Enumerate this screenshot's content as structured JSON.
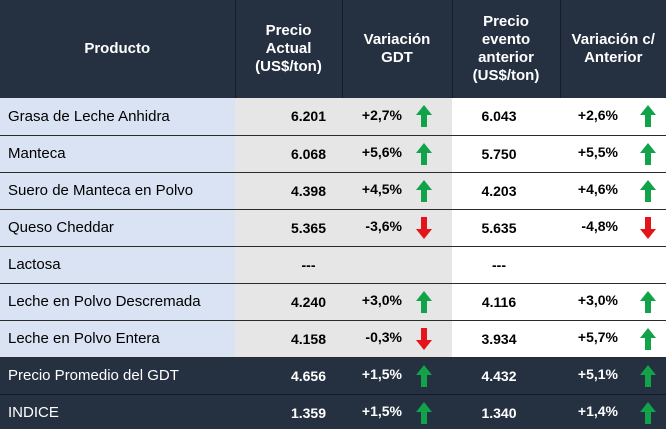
{
  "header": {
    "producto": "Producto",
    "precio_actual": [
      "Precio",
      "Actual",
      "(US$/ton)"
    ],
    "variacion_gdt": [
      "Variación",
      "GDT"
    ],
    "precio_anterior": [
      "Precio",
      "evento",
      "anterior",
      "(US$/ton)"
    ],
    "variacion_anterior": [
      "Variación c/",
      "Anterior"
    ]
  },
  "colors": {
    "up": "#12a24a",
    "down": "#e4141b"
  },
  "rows": [
    {
      "producto": "Grasa de Leche Anhidra",
      "precio": "6.201",
      "variacion": "+2,7%",
      "dir1": "up",
      "anterior": "6.043",
      "variacion_ant": "+2,6%",
      "dir2": "up"
    },
    {
      "producto": "Manteca",
      "precio": "6.068",
      "variacion": "+5,6%",
      "dir1": "up",
      "anterior": "5.750",
      "variacion_ant": "+5,5%",
      "dir2": "up"
    },
    {
      "producto": "Suero de Manteca en Polvo",
      "precio": "4.398",
      "variacion": "+4,5%",
      "dir1": "up",
      "anterior": "4.203",
      "variacion_ant": "+4,6%",
      "dir2": "up"
    },
    {
      "producto": "Queso Cheddar",
      "precio": "5.365",
      "variacion": "-3,6%",
      "dir1": "down",
      "anterior": "5.635",
      "variacion_ant": "-4,8%",
      "dir2": "down"
    },
    {
      "producto": "Lactosa",
      "precio": "---",
      "variacion": "",
      "dir1": "none",
      "anterior": "---",
      "variacion_ant": "",
      "dir2": "none"
    },
    {
      "producto": "Leche en Polvo Descremada",
      "precio": "4.240",
      "variacion": "+3,0%",
      "dir1": "up",
      "anterior": "4.116",
      "variacion_ant": "+3,0%",
      "dir2": "up"
    },
    {
      "producto": "Leche en Polvo Entera",
      "precio": "4.158",
      "variacion": "-0,3%",
      "dir1": "down",
      "anterior": "3.934",
      "variacion_ant": "+5,7%",
      "dir2": "up"
    }
  ],
  "summary": [
    {
      "producto": "Precio Promedio del GDT",
      "precio": "4.656",
      "variacion": "+1,5%",
      "dir1": "up",
      "anterior": "4.432",
      "variacion_ant": "+5,1%",
      "dir2": "up"
    },
    {
      "producto": "INDICE",
      "precio": "1.359",
      "variacion": "+1,5%",
      "dir1": "up",
      "anterior": "1.340",
      "variacion_ant": "+1,4%",
      "dir2": "up"
    }
  ]
}
